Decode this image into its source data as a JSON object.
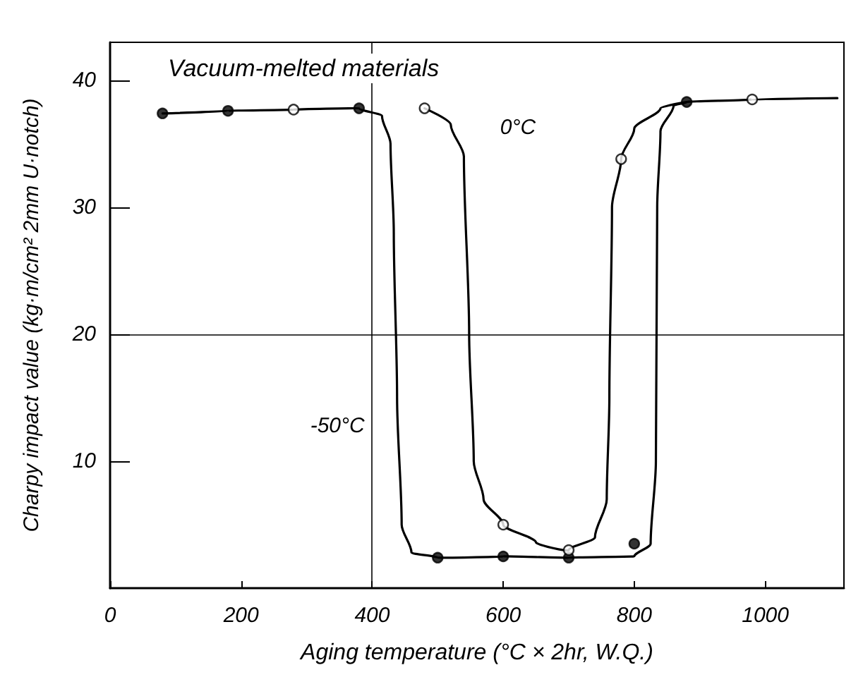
{
  "chart_data": {
    "type": "line",
    "xlabel": "Aging temperature (°C × 2hr, W.Q.)",
    "ylabel": "Charpy impact value (kg·m/cm² 2mm U·notch)",
    "annotations": [
      "Vacuum-melted materials"
    ],
    "xlim": [
      0,
      1120
    ],
    "xticks": [
      0,
      200,
      400,
      600,
      800,
      1000
    ],
    "ylim": [
      0,
      43
    ],
    "yticks": [
      10,
      20,
      30,
      40
    ],
    "grid": false,
    "legend": false,
    "line_style": "solid",
    "ref_lines": [
      {
        "axis": "y",
        "value": 20
      },
      {
        "axis": "x",
        "value": 400
      }
    ],
    "series": [
      {
        "name": "-50°C",
        "color": "#000000",
        "marker": "none",
        "x": [
          80,
          180,
          280,
          380,
          415,
          428,
          433,
          438,
          445,
          460,
          500,
          600,
          700,
          800,
          825,
          833,
          835,
          840,
          860,
          880,
          980,
          1110
        ],
        "values": [
          37.4,
          37.6,
          37.7,
          37.8,
          37.2,
          35,
          28,
          15,
          5,
          2.8,
          2.4,
          2.5,
          2.4,
          2.5,
          3.5,
          10,
          30,
          36,
          38,
          38.3,
          38.5,
          38.6
        ]
      },
      {
        "name": "0°C",
        "color": "#000000",
        "marker": "none",
        "x": [
          480,
          520,
          540,
          548,
          555,
          570,
          600,
          650,
          700,
          740,
          758,
          762,
          766,
          780,
          800,
          840,
          880
        ],
        "values": [
          37.8,
          36.5,
          34,
          20,
          10,
          7,
          5,
          3.6,
          3,
          4,
          7,
          15,
          30,
          33.8,
          36.2,
          37.8,
          38.3
        ]
      },
      {
        "type": "scatter",
        "color": "#000000",
        "marker": "circle",
        "x": [
          80,
          180,
          380,
          500,
          600,
          700,
          800,
          880
        ],
        "values": [
          37.4,
          37.6,
          37.8,
          2.4,
          2.5,
          2.4,
          3.5,
          38.3
        ]
      },
      {
        "type": "scatter",
        "color": "#ffffff",
        "marker": "circle",
        "x": [
          280,
          480,
          600,
          700,
          780,
          980
        ],
        "values": [
          37.7,
          37.8,
          5,
          3,
          33.8,
          38.5
        ]
      }
    ]
  }
}
